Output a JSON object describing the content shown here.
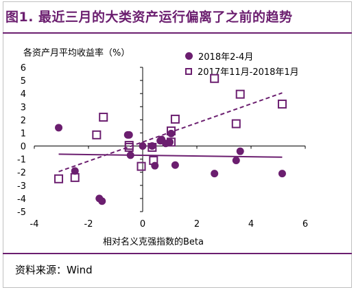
{
  "title": "图1. 最近三月的大类资产运行偏离了之前的趋势",
  "source": "资料来源：Wind",
  "colors": {
    "accent": "#6b1e6f"
  },
  "chart_data": {
    "type": "scatter",
    "ylabel": "各资产月平均收益率（%）",
    "xlabel": "相对名义克强指数的Beta",
    "xlim": [
      -4,
      6
    ],
    "ylim": [
      -5,
      6
    ],
    "xticks": [
      -4,
      -2,
      0,
      2,
      4,
      6
    ],
    "yticks": [
      -5,
      -4,
      -3,
      -2,
      -1,
      0,
      1,
      2,
      3,
      4,
      5,
      6
    ],
    "legend_position": "top-right",
    "series": [
      {
        "name": "2018年2-4月",
        "marker": "filled-circle",
        "points": [
          [
            -3.1,
            1.4
          ],
          [
            -2.5,
            -1.9
          ],
          [
            -1.6,
            -4.0
          ],
          [
            -1.5,
            -4.2
          ],
          [
            -0.55,
            0.85
          ],
          [
            -0.5,
            0.85
          ],
          [
            -0.45,
            -0.7
          ],
          [
            0.0,
            0.0
          ],
          [
            0.35,
            0.0
          ],
          [
            0.45,
            -1.5
          ],
          [
            0.65,
            0.4
          ],
          [
            0.7,
            0.5
          ],
          [
            0.85,
            0.2
          ],
          [
            1.0,
            0.3
          ],
          [
            1.05,
            0.95
          ],
          [
            1.2,
            -1.45
          ],
          [
            2.65,
            -2.1
          ],
          [
            3.45,
            -1.1
          ],
          [
            3.6,
            -0.4
          ],
          [
            5.15,
            -2.1
          ]
        ],
        "trend": {
          "x": [
            -3.1,
            5.15
          ],
          "y": [
            -0.62,
            -0.85
          ]
        }
      },
      {
        "name": "2017年11月-2018年1月",
        "marker": "hollow-square",
        "points": [
          [
            -3.1,
            -2.5
          ],
          [
            -2.5,
            -2.4
          ],
          [
            -1.7,
            0.85
          ],
          [
            -1.45,
            2.2
          ],
          [
            -0.5,
            0.05
          ],
          [
            -0.5,
            -0.1
          ],
          [
            -0.05,
            -1.55
          ],
          [
            0.4,
            -1.1
          ],
          [
            0.35,
            -0.1
          ],
          [
            1.05,
            0.3
          ],
          [
            1.05,
            1.15
          ],
          [
            1.2,
            2.05
          ],
          [
            2.65,
            5.15
          ],
          [
            3.45,
            1.7
          ],
          [
            3.6,
            3.95
          ],
          [
            5.15,
            3.2
          ]
        ],
        "trend": {
          "x": [
            -3.1,
            5.15
          ],
          "y": [
            -1.95,
            4.05
          ],
          "style": "dashed"
        }
      }
    ]
  }
}
